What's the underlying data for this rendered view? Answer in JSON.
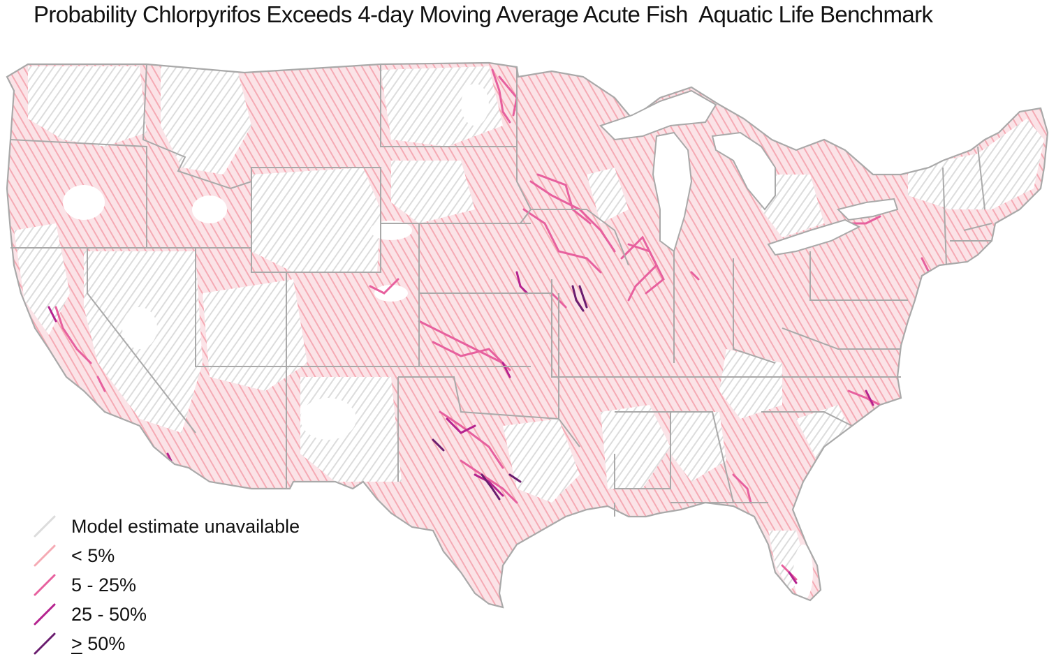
{
  "title": "Probability Chlorpyrifos Exceeds 4-day Moving Average Acute Fish  Aquatic Life Benchmark",
  "legend": [
    {
      "id": "na",
      "label": "Model estimate unavailable",
      "color": "#dcdcdc",
      "prefix": ""
    },
    {
      "id": "lt5",
      "label": "< 5%",
      "color": "#f5aab4",
      "prefix": ""
    },
    {
      "id": "5-25",
      "label": "5 - 25%",
      "color": "#e7609e",
      "prefix": ""
    },
    {
      "id": "25-50",
      "label": "25 - 50%",
      "color": "#b5228f",
      "prefix": ""
    },
    {
      "id": "ge50",
      "label": " 50%",
      "color": "#6a1d6f",
      "prefix": ">"
    }
  ],
  "colors": {
    "boundary": "#a9a9a9",
    "unavailable": "#dcdcdc",
    "low": "#f5aab4",
    "mid": "#e7609e",
    "high": "#b5228f",
    "very_high": "#6a1d6f"
  }
}
